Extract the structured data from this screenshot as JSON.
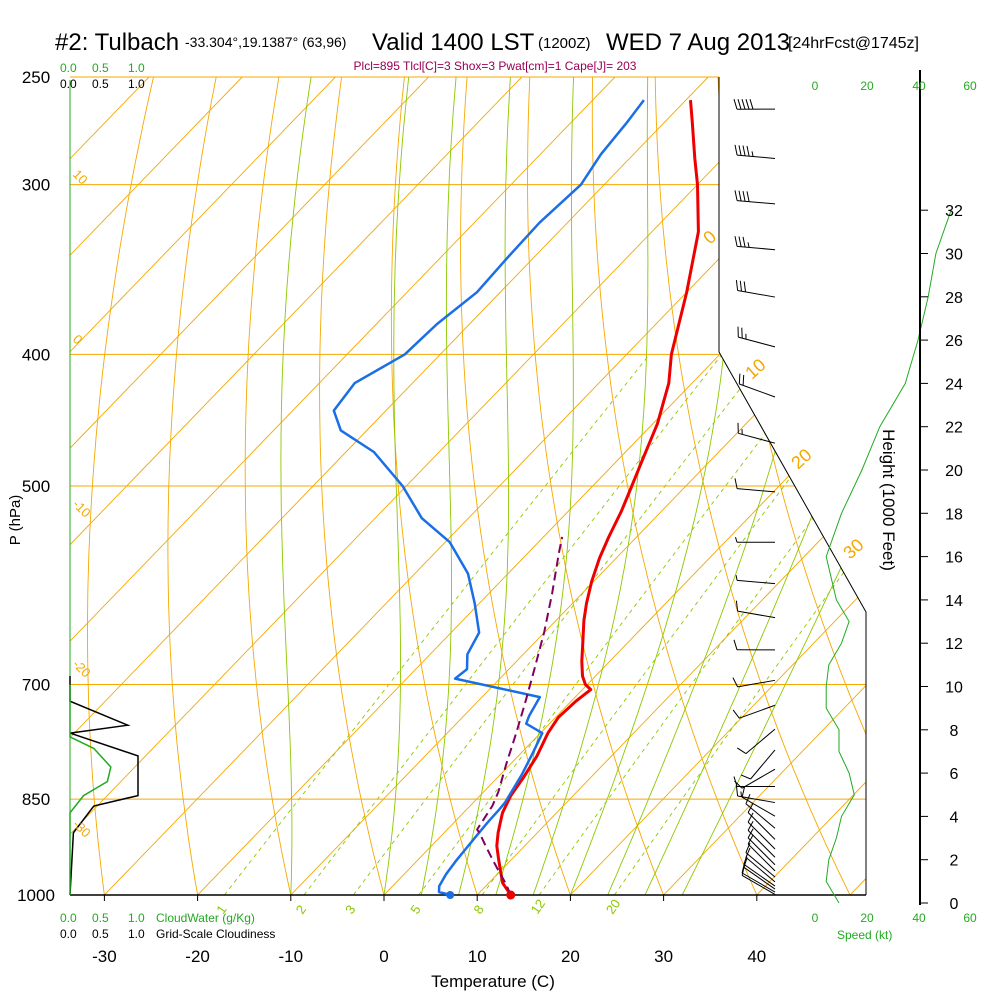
{
  "header": {
    "station": "#2: Tulbach",
    "coords": "-33.304°,19.1387° (63,96)",
    "valid": "Valid 1400 LST",
    "zulu": "(1200Z)",
    "date": "WED 7 Aug 2013",
    "forecast": "[24hrFcst@1745z]",
    "indices": "Plcl=895 Tlcl[C]=3 Shox=3 Pwat[cm]=1 Cape[J]= 203"
  },
  "colors": {
    "isotherm": "#f5a800",
    "dry_adiabat": "#f5a800",
    "moist_adiabat": "#8cc800",
    "mixing_ratio": "#8cc800",
    "temperature": "#ee0000",
    "dewpoint": "#1a6ee6",
    "parcel": "#800060",
    "cloud_water": "#22aa22",
    "cloudiness": "#000000",
    "wind_speed": "#22aa22",
    "indices_text": "#990055"
  },
  "chart_data": {
    "type": "line",
    "title": "Valid 1400 LST (1200Z) WED 7 Aug 2013",
    "xlabel": "Temperature (C)",
    "ylabel": "P (hPa)",
    "y2label": "Height (1000 Feet)",
    "log_pressure_axis": true,
    "skewed_temperature_axis": true,
    "xlim": [
      -35,
      51.5
    ],
    "ylim": [
      1000,
      250
    ],
    "x_ticks": [
      -30,
      -20,
      -10,
      0,
      10,
      20,
      30,
      40
    ],
    "p_ticks": [
      250,
      300,
      400,
      500,
      700,
      850,
      1000
    ],
    "height_ticks": [
      0,
      2,
      4,
      6,
      8,
      10,
      12,
      14,
      16,
      18,
      20,
      22,
      24,
      26,
      28,
      30,
      32
    ],
    "isotherm_labels": [
      "10",
      "0",
      "-10",
      "-20",
      "-30",
      "0",
      "10",
      "20",
      "30"
    ],
    "mixing_ratio_labels": [
      "1",
      "2",
      "3",
      "5",
      "8",
      "12",
      "20"
    ],
    "scale_labels": {
      "cloud_water_top": [
        "0.0",
        "0.5",
        "1.0"
      ],
      "cloudiness_top": [
        "0.0",
        "0.5",
        "1.0"
      ],
      "cloud_water_bottom": [
        "0.0",
        "0.5",
        "1.0"
      ],
      "cloud_water_name": "CloudWater (g/Kg)",
      "cloudiness_bottom": [
        "0.0",
        "0.5",
        "1.0"
      ],
      "cloudiness_name": "Grid-Scale Cloudiness",
      "speed_top": [
        "0",
        "20",
        "40",
        "60"
      ],
      "speed_bottom": [
        "0",
        "20",
        "40",
        "60"
      ],
      "speed_name": "Speed (kt)"
    },
    "series": [
      {
        "name": "temperature",
        "points": [
          [
            13.6,
            1000
          ],
          [
            11.5,
            980
          ],
          [
            10,
            960
          ],
          [
            8.5,
            940
          ],
          [
            7,
            920
          ],
          [
            5.8,
            900
          ],
          [
            5,
            885
          ],
          [
            4.2,
            870
          ],
          [
            3.3,
            845
          ],
          [
            2.8,
            820
          ],
          [
            2,
            790
          ],
          [
            0.8,
            760
          ],
          [
            0.3,
            740
          ],
          [
            0.5,
            720
          ],
          [
            0.9,
            706
          ],
          [
            -0.2,
            700
          ],
          [
            -1.4,
            690
          ],
          [
            -3,
            673
          ],
          [
            -5,
            650
          ],
          [
            -7,
            628
          ],
          [
            -8.5,
            610
          ],
          [
            -10.2,
            588
          ],
          [
            -11.8,
            565
          ],
          [
            -13,
            545
          ],
          [
            -14.3,
            522
          ],
          [
            -15.8,
            500
          ],
          [
            -17.4,
            478
          ],
          [
            -19.5,
            450
          ],
          [
            -22.5,
            420
          ],
          [
            -25.2,
            400
          ],
          [
            -30,
            360
          ],
          [
            -35,
            325
          ],
          [
            -40,
            300
          ],
          [
            -43,
            287
          ],
          [
            -47,
            270
          ],
          [
            -49.5,
            260
          ]
        ]
      },
      {
        "name": "dewpoint",
        "points": [
          [
            7.1,
            1000
          ],
          [
            5.6,
            995
          ],
          [
            5,
            985
          ],
          [
            4.5,
            965
          ],
          [
            4.2,
            945
          ],
          [
            4,
            925
          ],
          [
            3.8,
            905
          ],
          [
            3.6,
            885
          ],
          [
            3.5,
            865
          ],
          [
            3.4,
            855
          ],
          [
            3,
            840
          ],
          [
            2.3,
            815
          ],
          [
            1.2,
            785
          ],
          [
            0.2,
            760
          ],
          [
            -2.5,
            748
          ],
          [
            -3,
            738
          ],
          [
            -3.8,
            715
          ],
          [
            -14.8,
            693
          ],
          [
            -14.5,
            682
          ],
          [
            -16,
            665
          ],
          [
            -17,
            641
          ],
          [
            -20.5,
            610
          ],
          [
            -24.3,
            580
          ],
          [
            -29.5,
            550
          ],
          [
            -35,
            528
          ],
          [
            -40.4,
            500
          ],
          [
            -47,
            472
          ],
          [
            -52.8,
            455
          ],
          [
            -55.6,
            440
          ],
          [
            -56.2,
            420
          ],
          [
            -53.8,
            400
          ],
          [
            -53.5,
            380
          ],
          [
            -52.5,
            360
          ],
          [
            -52.8,
            340
          ],
          [
            -53,
            320
          ],
          [
            -52.5,
            300
          ],
          [
            -53.5,
            285
          ],
          [
            -54,
            270
          ],
          [
            -54.5,
            260
          ]
        ]
      },
      {
        "name": "parcel",
        "points": [
          [
            13.6,
            1000
          ],
          [
            11.8,
            980
          ],
          [
            9.8,
            960
          ],
          [
            7.8,
            940
          ],
          [
            5.8,
            920
          ],
          [
            3.8,
            900
          ],
          [
            3.2,
            895
          ],
          [
            2.4,
            860
          ],
          [
            1.6,
            840
          ],
          [
            -0.5,
            800
          ],
          [
            -2.6,
            760
          ],
          [
            -4.9,
            720
          ],
          [
            -7.4,
            680
          ],
          [
            -10.1,
            640
          ],
          [
            -13.2,
            600
          ],
          [
            -16.7,
            560
          ],
          [
            -18,
            545
          ]
        ]
      }
    ],
    "surface_dewpoint_point": [
      7.1,
      1000
    ],
    "surface_temperature_point": [
      13.6,
      1000
    ],
    "cloudiness_profile": [
      [
        0,
        1000
      ],
      [
        0.05,
        900
      ],
      [
        0.35,
        860
      ],
      [
        1.0,
        845
      ],
      [
        1.0,
        815
      ],
      [
        1.0,
        790
      ],
      [
        0,
        760
      ],
      [
        0.85,
        750
      ],
      [
        0,
        720
      ],
      [
        0,
        690
      ]
    ],
    "cloud_water_profile": [
      [
        0,
        1000
      ],
      [
        0,
        870
      ],
      [
        0.2,
        845
      ],
      [
        0.55,
        825
      ],
      [
        0.6,
        805
      ],
      [
        0.35,
        780
      ],
      [
        0,
        765
      ],
      [
        0,
        700
      ]
    ],
    "wind_speed_profile": [
      [
        9,
        0
      ],
      [
        4,
        1
      ],
      [
        5,
        2
      ],
      [
        8,
        3
      ],
      [
        10,
        4
      ],
      [
        15,
        5
      ],
      [
        13,
        6
      ],
      [
        9,
        7
      ],
      [
        9,
        8
      ],
      [
        4,
        9
      ],
      [
        4,
        10
      ],
      [
        5,
        11
      ],
      [
        10,
        12
      ],
      [
        13,
        13
      ],
      [
        8,
        14
      ],
      [
        4,
        16
      ],
      [
        10,
        18
      ],
      [
        18,
        20
      ],
      [
        25,
        22
      ],
      [
        35,
        24
      ],
      [
        40,
        26
      ],
      [
        44,
        28
      ],
      [
        47,
        30
      ],
      [
        53,
        32
      ]
    ],
    "wind_barbs": [
      {
        "p": 999,
        "dir": 300,
        "spd": 10
      },
      {
        "p": 995,
        "dir": 300,
        "spd": 10
      },
      {
        "p": 990,
        "dir": 305,
        "spd": 10
      },
      {
        "p": 985,
        "dir": 305,
        "spd": 10
      },
      {
        "p": 978,
        "dir": 310,
        "spd": 10
      },
      {
        "p": 970,
        "dir": 310,
        "spd": 10
      },
      {
        "p": 960,
        "dir": 315,
        "spd": 10
      },
      {
        "p": 950,
        "dir": 315,
        "spd": 10
      },
      {
        "p": 938,
        "dir": 315,
        "spd": 10
      },
      {
        "p": 925,
        "dir": 315,
        "spd": 10
      },
      {
        "p": 910,
        "dir": 315,
        "spd": 10
      },
      {
        "p": 893,
        "dir": 310,
        "spd": 10
      },
      {
        "p": 875,
        "dir": 300,
        "spd": 10
      },
      {
        "p": 855,
        "dir": 280,
        "spd": 15
      },
      {
        "p": 832,
        "dir": 270,
        "spd": 10
      },
      {
        "p": 808,
        "dir": 240,
        "spd": 10
      },
      {
        "p": 782,
        "dir": 220,
        "spd": 10
      },
      {
        "p": 755,
        "dir": 230,
        "spd": 10
      },
      {
        "p": 725,
        "dir": 250,
        "spd": 10
      },
      {
        "p": 695,
        "dir": 260,
        "spd": 10
      },
      {
        "p": 660,
        "dir": 270,
        "spd": 10
      },
      {
        "p": 625,
        "dir": 280,
        "spd": 10
      },
      {
        "p": 590,
        "dir": 275,
        "spd": 5
      },
      {
        "p": 550,
        "dir": 270,
        "spd": 5
      },
      {
        "p": 505,
        "dir": 275,
        "spd": 10
      },
      {
        "p": 465,
        "dir": 285,
        "spd": 15
      },
      {
        "p": 430,
        "dir": 290,
        "spd": 20
      },
      {
        "p": 395,
        "dir": 285,
        "spd": 25
      },
      {
        "p": 363,
        "dir": 280,
        "spd": 30
      },
      {
        "p": 335,
        "dir": 275,
        "spd": 35
      },
      {
        "p": 310,
        "dir": 275,
        "spd": 40
      },
      {
        "p": 287,
        "dir": 275,
        "spd": 45
      },
      {
        "p": 264,
        "dir": 270,
        "spd": 50
      }
    ]
  }
}
